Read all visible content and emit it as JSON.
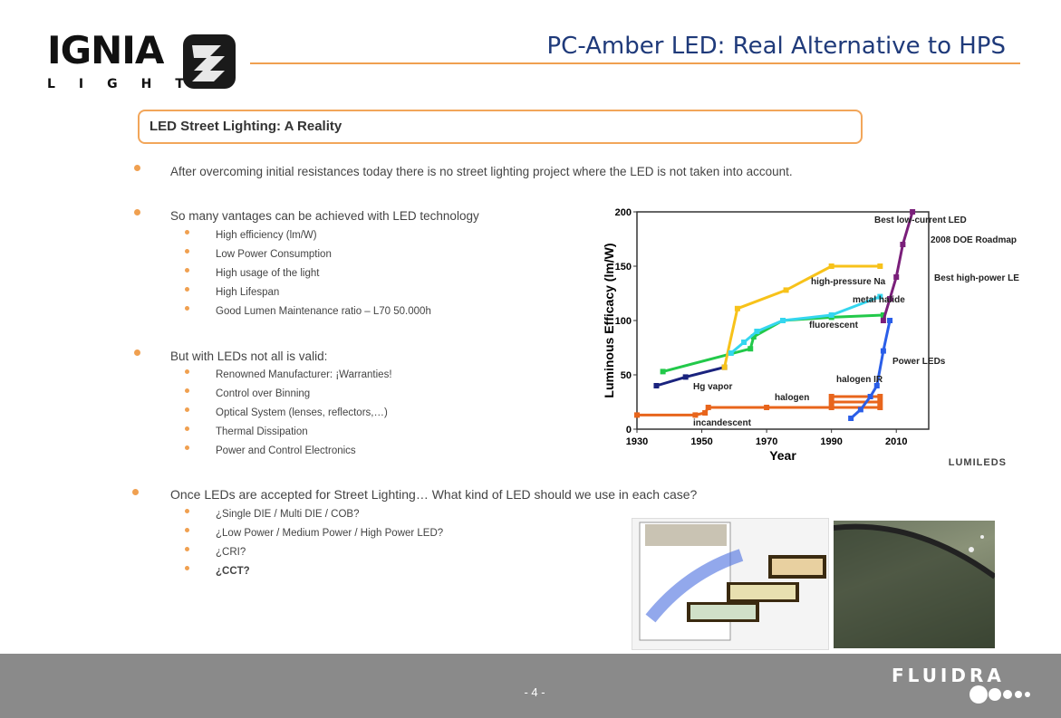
{
  "header": {
    "logo_word": "IGNIA",
    "logo_sub": "LIGHT",
    "title": "PC-Amber LED: Real Alternative to HPS"
  },
  "section": {
    "title": "LED Street Lighting: A Reality"
  },
  "bullets": [
    {
      "text": "After overcoming initial resistances today there is no street lighting project where the LED is not taken into account.",
      "sub": []
    },
    {
      "text": "So many vantages can be achieved with LED technology",
      "sub": [
        "High efficiency (lm/W)",
        "Low Power Consumption",
        "High usage of the light",
        "High Lifespan",
        "Good Lumen Maintenance ratio – L70 50.000h"
      ]
    },
    {
      "text": "But with LEDs not all is valid:",
      "sub": [
        "Renowned Manufacturer: ¡Warranties!",
        "Control over Binning",
        "Optical System (lenses, reflectors,…)",
        "Thermal Dissipation",
        "Power and Control Electronics"
      ]
    },
    {
      "text": "Once LEDs are accepted for Street Lighting… What kind of LED should we use in each case?",
      "sub": [
        "¿Single DIE / Multi DIE / COB?",
        "¿Low Power / Medium Power / High Power LED?",
        "¿CRI?",
        "¿CCT?"
      ]
    }
  ],
  "chart_data": {
    "type": "line",
    "title": "",
    "xlabel": "Year",
    "ylabel": "Luminous Efficacy (lm/W)",
    "xlim": [
      1930,
      2020
    ],
    "ylim": [
      0,
      200
    ],
    "x_ticks": [
      1930,
      1950,
      1970,
      1990,
      2010
    ],
    "y_ticks": [
      0,
      50,
      100,
      150,
      200
    ],
    "series": [
      {
        "name": "incandescent",
        "color": "#e8651c",
        "points": [
          [
            1930,
            13
          ],
          [
            1948,
            13
          ],
          [
            1951,
            15
          ],
          [
            1952,
            20
          ],
          [
            1970,
            20
          ],
          [
            1990,
            20
          ],
          [
            2005,
            20
          ]
        ]
      },
      {
        "name": "halogen",
        "color": "#e8651c",
        "points": [
          [
            1990,
            25
          ],
          [
            2005,
            25
          ]
        ]
      },
      {
        "name": "halogen IR",
        "color": "#e8651c",
        "points": [
          [
            1990,
            30
          ],
          [
            2005,
            30
          ]
        ]
      },
      {
        "name": "Hg vapor",
        "color": "#1a237e",
        "points": [
          [
            1936,
            40
          ],
          [
            1945,
            48
          ],
          [
            1957,
            57
          ]
        ]
      },
      {
        "name": "fluorescent",
        "color": "#22c94a",
        "points": [
          [
            1938,
            53
          ],
          [
            1965,
            74
          ],
          [
            1966,
            85
          ],
          [
            1975,
            100
          ],
          [
            1990,
            103
          ],
          [
            2006,
            105
          ]
        ]
      },
      {
        "name": "high-pressure Na",
        "color": "#f7c21a",
        "points": [
          [
            1957,
            57
          ],
          [
            1961,
            111
          ],
          [
            1976,
            128
          ],
          [
            1990,
            150
          ],
          [
            2005,
            150
          ]
        ]
      },
      {
        "name": "metal halide",
        "color": "#35d6ef",
        "points": [
          [
            1959,
            70
          ],
          [
            1963,
            80
          ],
          [
            1967,
            90
          ],
          [
            1975,
            100
          ],
          [
            1990,
            105
          ],
          [
            2005,
            122
          ]
        ]
      },
      {
        "name": "Power LEDs",
        "color": "#2a5ee8",
        "points": [
          [
            1996,
            10
          ],
          [
            1999,
            18
          ],
          [
            2002,
            30
          ],
          [
            2004,
            40
          ],
          [
            2006,
            72
          ],
          [
            2008,
            100
          ]
        ]
      },
      {
        "name": "2008 DOE Roadmap",
        "color": "#7a1f7a",
        "points": [
          [
            2006,
            100
          ],
          [
            2008,
            120
          ],
          [
            2010,
            140
          ],
          [
            2012,
            170
          ],
          [
            2015,
            200
          ]
        ]
      }
    ],
    "annotations": [
      "Best low-current LED",
      "2008 DOE Roadmap",
      "Best high-power LED",
      "high-pressure Na",
      "metal halide",
      "fluorescent",
      "Hg vapor",
      "halogen",
      "halogen IR",
      "incandescent",
      "Power LEDs"
    ],
    "brand": "LUMILEDS"
  },
  "footer": {
    "page": "- 4 -",
    "brand": "FLUIDRA"
  }
}
